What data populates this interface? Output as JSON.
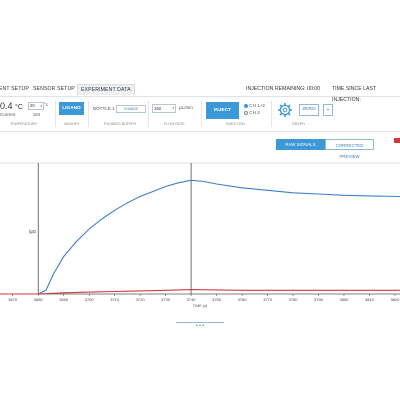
{
  "tabs": [
    {
      "label": "ENT SETUP"
    },
    {
      "label": "SENSOR SETUP"
    },
    {
      "label": "EXPERIMENT DATA"
    }
  ],
  "status": {
    "injection_remaining": "INJECTION REMAINING: 00:00",
    "time_since_last_injection": "TIME SINCE LAST INJECTION:"
  },
  "controls": {
    "temperature": {
      "value": "0.4",
      "unit": "°C",
      "current_label": "Current",
      "set_value": "20",
      "set_unit": "°c",
      "set_label": "Set",
      "section": "TEMPERATURE"
    },
    "ligand": {
      "label": "LIGAND",
      "section": "WASHES"
    },
    "running_buffer": {
      "bottle_label": "BOTTLE 1",
      "select_value": "CHANGE",
      "section": "RUNNING BUFFER"
    },
    "flow_rate": {
      "value": "150",
      "unit": "µL/min",
      "section": "FLOW RATE"
    },
    "injection": {
      "button": "INJECT",
      "ch1": "CH 1+2",
      "ch2": "CH 2",
      "section": "INJECTION"
    },
    "graph": {
      "zero": "ZERO",
      "section": "GRAPH"
    }
  },
  "view_toggle": {
    "raw": "RAW SIGNALS",
    "corrected": "CORRECTED PREVIEW"
  },
  "colors": {
    "accent": "#3d98d8",
    "blue_series": "#3f7fc4",
    "red_series": "#d23a3a"
  },
  "chart_data": {
    "type": "line",
    "xlabel": "TIME (s)",
    "ylabel": "",
    "marker_label": "lgG",
    "x_ticks": [
      3670,
      3680,
      3690,
      3700,
      3710,
      3720,
      3730,
      3740,
      3750,
      3760,
      3770,
      3780,
      3790,
      3800,
      3810,
      3820
    ],
    "xlim": [
      3665,
      3822
    ],
    "ylim": [
      0,
      1
    ],
    "vertical_markers": [
      3680,
      3740
    ],
    "series": [
      {
        "color": "#3f7fc4",
        "x": [
          3665,
          3675,
          3680,
          3683,
          3686,
          3690,
          3695,
          3700,
          3705,
          3710,
          3715,
          3720,
          3725,
          3730,
          3735,
          3740,
          3745,
          3750,
          3760,
          3770,
          3780,
          3790,
          3800,
          3810,
          3822
        ],
        "y": [
          0.0,
          0.0,
          0.0,
          0.03,
          0.16,
          0.3,
          0.42,
          0.52,
          0.6,
          0.67,
          0.73,
          0.78,
          0.82,
          0.86,
          0.89,
          0.91,
          0.9,
          0.88,
          0.85,
          0.83,
          0.81,
          0.8,
          0.79,
          0.785,
          0.78
        ]
      },
      {
        "color": "#d23a3a",
        "x": [
          3665,
          3680,
          3690,
          3700,
          3710,
          3720,
          3730,
          3740,
          3750,
          3760,
          3780,
          3800,
          3822
        ],
        "y": [
          0.0,
          0.0,
          0.01,
          0.015,
          0.02,
          0.025,
          0.03,
          0.035,
          0.033,
          0.03,
          0.03,
          0.03,
          0.03
        ]
      }
    ]
  },
  "pager_label": "• • •"
}
